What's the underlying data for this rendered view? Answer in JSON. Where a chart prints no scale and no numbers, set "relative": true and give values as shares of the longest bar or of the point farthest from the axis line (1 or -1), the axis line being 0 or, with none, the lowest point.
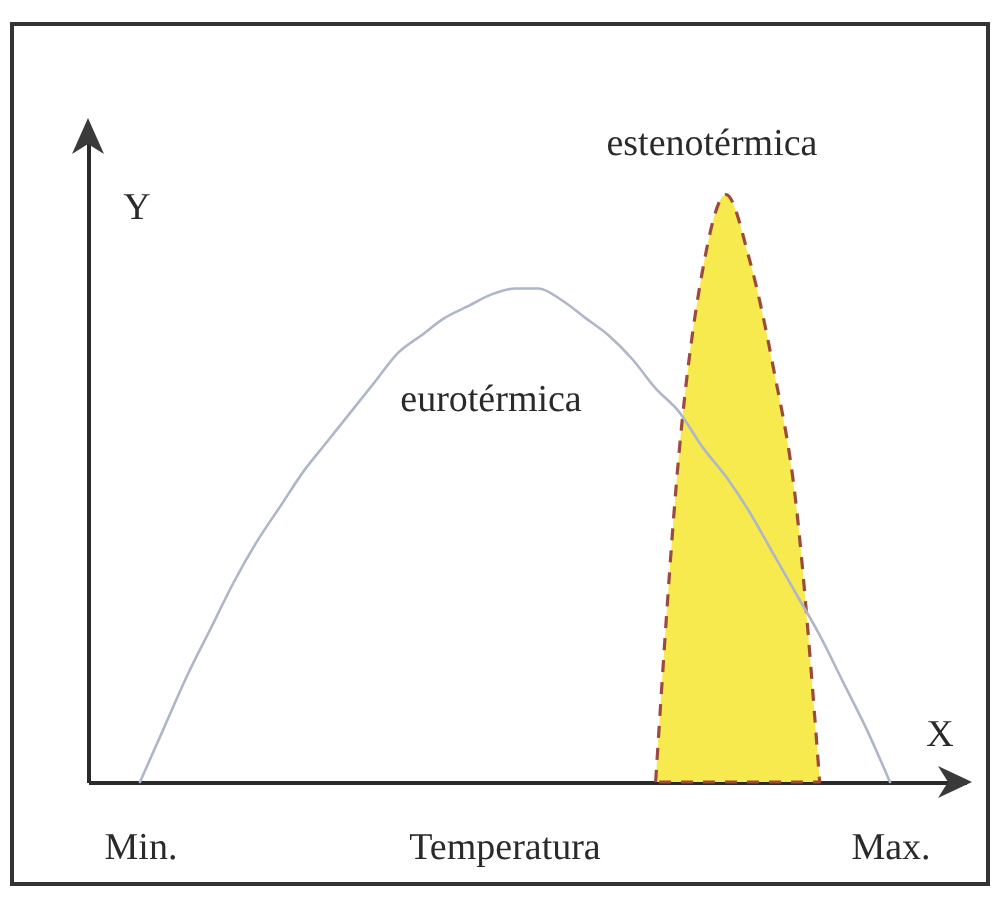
{
  "chart_data": {
    "type": "line",
    "xlabel": "Temperatura",
    "ylabel": "Y",
    "annotations": [
      "X"
    ],
    "relative": true,
    "tick_labels": "x",
    "categories": [
      "Min.",
      null,
      null,
      null,
      null,
      null,
      null,
      null,
      null,
      null,
      null,
      null,
      null,
      null,
      null,
      null,
      null,
      null,
      null,
      null,
      null,
      null,
      null,
      null,
      null,
      null,
      null,
      null,
      null,
      null,
      null,
      null,
      "Max."
    ],
    "series": [
      {
        "name": "estenotérmica",
        "type": "area",
        "color": "#f6ea4e",
        "line_style": "dashed",
        "values": [
          null,
          null,
          null,
          null,
          null,
          null,
          null,
          null,
          null,
          null,
          null,
          null,
          null,
          null,
          null,
          null,
          null,
          null,
          null,
          null,
          null,
          null,
          0,
          0.56,
          0.87,
          1,
          0.89,
          0.71,
          0.47,
          0,
          null,
          null,
          null
        ]
      },
      {
        "name": "eurotérmica",
        "color": "#aeb6c7",
        "values": [
          0,
          0.09,
          0.18,
          0.26,
          0.34,
          0.41,
          0.47,
          0.53,
          0.58,
          0.63,
          0.68,
          0.73,
          0.76,
          0.79,
          0.81,
          0.83,
          0.84,
          0.84,
          0.82,
          0.79,
          0.76,
          0.72,
          0.67,
          0.63,
          0.57,
          0.52,
          0.46,
          0.39,
          0.32,
          0.25,
          0.17,
          0.09,
          0
        ]
      }
    ]
  }
}
